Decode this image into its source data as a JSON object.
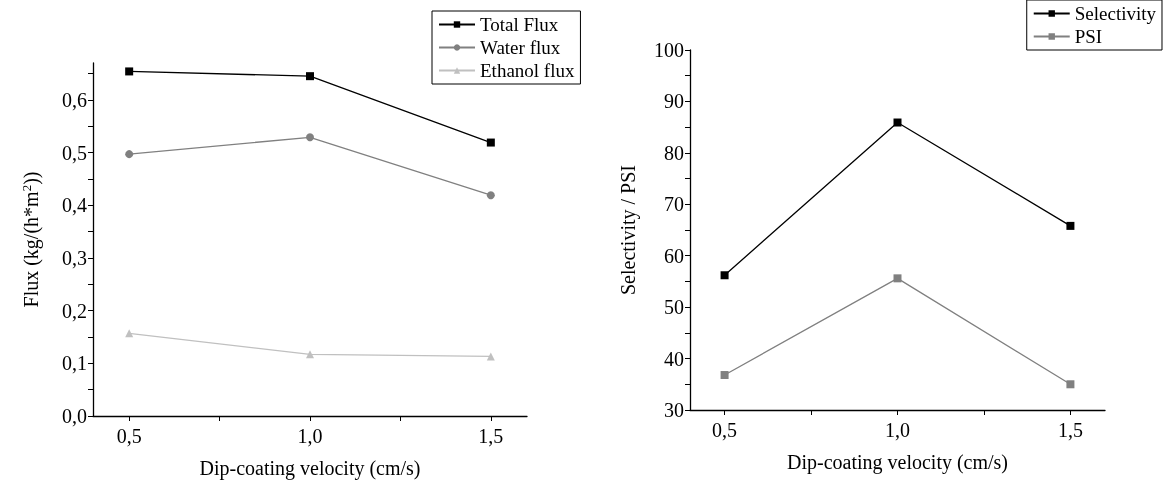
{
  "chart_data": [
    {
      "type": "line",
      "xlabel": "Dip-coating velocity (cm/s)",
      "ylabel": "Flux (kg/(h*m$^{2}$))",
      "x": [
        0.5,
        1.0,
        1.5
      ],
      "series": [
        {
          "name": "Total Flux",
          "color": "#000000",
          "marker": "square",
          "values": [
            0.654,
            0.645,
            0.519
          ]
        },
        {
          "name": "Water flux",
          "color": "#808080",
          "marker": "circle",
          "values": [
            0.497,
            0.529,
            0.419
          ]
        },
        {
          "name": "Ethanol flux",
          "color": "#c0c0c0",
          "marker": "triangle",
          "values": [
            0.157,
            0.117,
            0.113
          ]
        }
      ],
      "xlim": [
        0.4,
        1.6
      ],
      "xticks": [
        {
          "value": 0.5,
          "label": "0,5"
        },
        {
          "value": 0.75,
          "label": null
        },
        {
          "value": 1.0,
          "label": "1,0"
        },
        {
          "value": 1.25,
          "label": null
        },
        {
          "value": 1.5,
          "label": "1,5"
        }
      ],
      "ylim": [
        0,
        0.67
      ],
      "yticks": [
        {
          "value": 0,
          "label": "0,0"
        },
        {
          "value": 0.05,
          "label": null
        },
        {
          "value": 0.1,
          "label": "0,1"
        },
        {
          "value": 0.15,
          "label": null
        },
        {
          "value": 0.2,
          "label": "0,2"
        },
        {
          "value": 0.25,
          "label": null
        },
        {
          "value": 0.3,
          "label": "0,3"
        },
        {
          "value": 0.35,
          "label": null
        },
        {
          "value": 0.4,
          "label": "0,4"
        },
        {
          "value": 0.45,
          "label": null
        },
        {
          "value": 0.5,
          "label": "0,5"
        },
        {
          "value": 0.55,
          "label": null
        },
        {
          "value": 0.6,
          "label": "0,6"
        },
        {
          "value": 0.65,
          "label": null
        }
      ],
      "grid": false,
      "legend": "top right",
      "line_style": "solid"
    },
    {
      "type": "line",
      "xlabel": "Dip-coating velocity (cm/s)",
      "ylabel": "Selectivity / PSI",
      "x": [
        0.5,
        1.0,
        1.5
      ],
      "series": [
        {
          "name": "Selectivity",
          "color": "#000000",
          "marker": "square",
          "values": [
            56.2,
            85.9,
            65.8
          ]
        },
        {
          "name": "PSI",
          "color": "#808080",
          "marker": "square",
          "values": [
            36.8,
            55.6,
            35.0
          ]
        }
      ],
      "xlim": [
        0.4,
        1.6
      ],
      "xticks": [
        {
          "value": 0.5,
          "label": "0,5"
        },
        {
          "value": 0.75,
          "label": null
        },
        {
          "value": 1.0,
          "label": "1,0"
        },
        {
          "value": 1.25,
          "label": null
        },
        {
          "value": 1.5,
          "label": "1,5"
        }
      ],
      "ylim": [
        30,
        100
      ],
      "yticks": [
        30,
        {
          "value": 35,
          "label": null
        },
        40,
        {
          "value": 45,
          "label": null
        },
        50,
        {
          "value": 55,
          "label": null
        },
        60,
        {
          "value": 65,
          "label": null
        },
        70,
        {
          "value": 75,
          "label": null
        },
        80,
        {
          "value": 85,
          "label": null
        },
        90,
        {
          "value": 95,
          "label": null
        },
        100
      ],
      "grid": false,
      "legend": "top right",
      "line_style": "solid"
    }
  ]
}
